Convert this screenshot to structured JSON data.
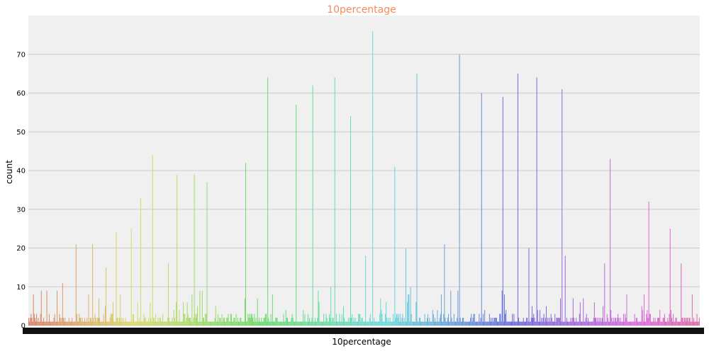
{
  "chart_data": {
    "type": "bar",
    "title": "10percentage",
    "xlabel": "10percentage",
    "ylabel": "count",
    "ylim": [
      0,
      80
    ],
    "yticks": [
      0,
      10,
      20,
      30,
      40,
      50,
      60,
      70
    ],
    "grid": true,
    "background": "#f0f0f0",
    "title_color": "#f58a5a",
    "bar_count": 851,
    "x_tick_labels_overlapping": true,
    "peaks": [
      {
        "x_frac": 0.05,
        "value": 11
      },
      {
        "x_frac": 0.07,
        "value": 21
      },
      {
        "x_frac": 0.095,
        "value": 21
      },
      {
        "x_frac": 0.115,
        "value": 15
      },
      {
        "x_frac": 0.131,
        "value": 24
      },
      {
        "x_frac": 0.153,
        "value": 25
      },
      {
        "x_frac": 0.167,
        "value": 33
      },
      {
        "x_frac": 0.185,
        "value": 44
      },
      {
        "x_frac": 0.208,
        "value": 16
      },
      {
        "x_frac": 0.221,
        "value": 39
      },
      {
        "x_frac": 0.247,
        "value": 39
      },
      {
        "x_frac": 0.266,
        "value": 37
      },
      {
        "x_frac": 0.324,
        "value": 42
      },
      {
        "x_frac": 0.357,
        "value": 64
      },
      {
        "x_frac": 0.399,
        "value": 57
      },
      {
        "x_frac": 0.424,
        "value": 62
      },
      {
        "x_frac": 0.456,
        "value": 64
      },
      {
        "x_frac": 0.48,
        "value": 54
      },
      {
        "x_frac": 0.502,
        "value": 18
      },
      {
        "x_frac": 0.513,
        "value": 76
      },
      {
        "x_frac": 0.546,
        "value": 41
      },
      {
        "x_frac": 0.562,
        "value": 20
      },
      {
        "x_frac": 0.579,
        "value": 65
      },
      {
        "x_frac": 0.62,
        "value": 21
      },
      {
        "x_frac": 0.642,
        "value": 70
      },
      {
        "x_frac": 0.675,
        "value": 60
      },
      {
        "x_frac": 0.707,
        "value": 59
      },
      {
        "x_frac": 0.729,
        "value": 65
      },
      {
        "x_frac": 0.746,
        "value": 20
      },
      {
        "x_frac": 0.758,
        "value": 64
      },
      {
        "x_frac": 0.795,
        "value": 61
      },
      {
        "x_frac": 0.8,
        "value": 18
      },
      {
        "x_frac": 0.859,
        "value": 16
      },
      {
        "x_frac": 0.867,
        "value": 43
      },
      {
        "x_frac": 0.925,
        "value": 32
      },
      {
        "x_frac": 0.956,
        "value": 25
      },
      {
        "x_frac": 0.973,
        "value": 16
      }
    ]
  }
}
